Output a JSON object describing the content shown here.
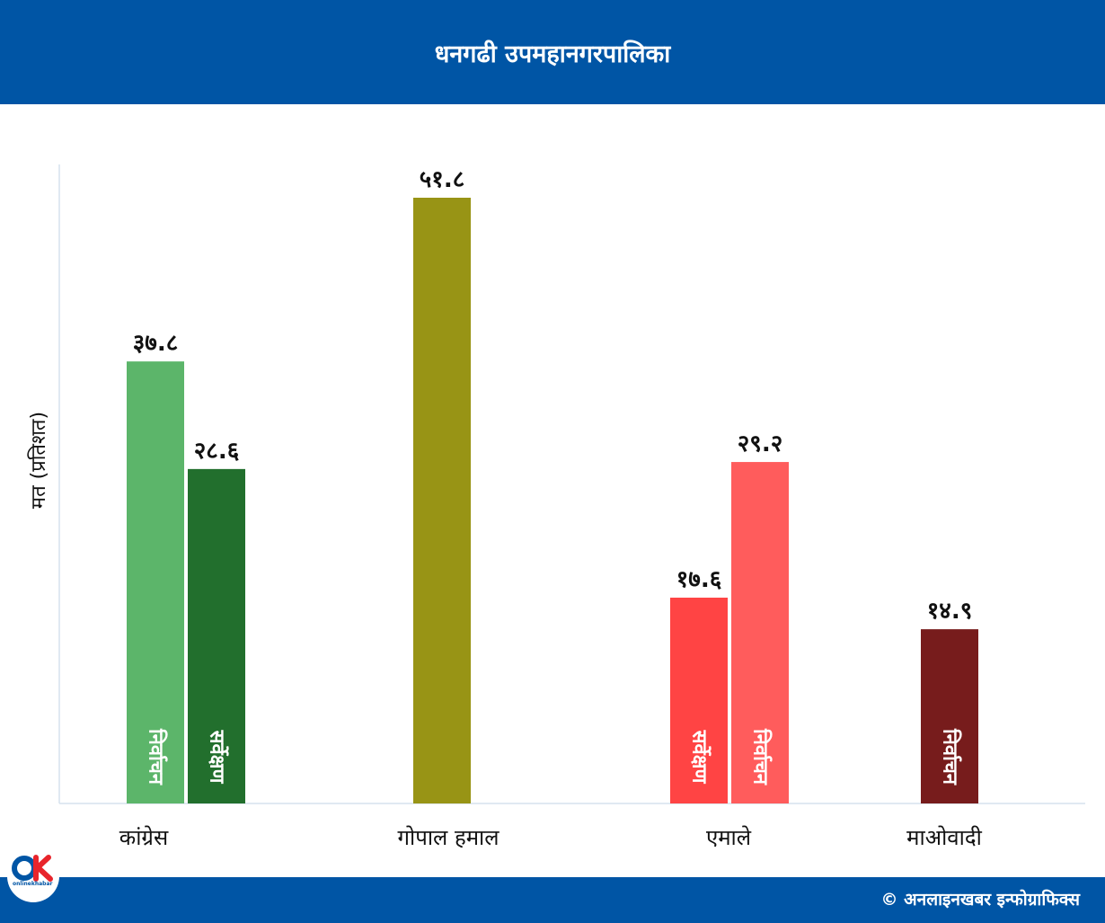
{
  "title": "धनगढी उपमहानगरपालिका",
  "footer": {
    "credit": "© अनलाइनखबर इन्फोग्राफिक्स",
    "logo_text": "onlinekhabar"
  },
  "colors": {
    "banner": "#0055a5",
    "congress_election": "#5cb56a",
    "congress_survey": "#226f2d",
    "gopal": "#989415",
    "uml_survey": "#ff4444",
    "uml_election": "#ff5c5c",
    "maoist": "#771c1c"
  },
  "chart_data": {
    "type": "bar",
    "title": "धनगढी उपमहानगरपालिका",
    "ylabel": "मत (प्रतिशत)",
    "xlabel": "",
    "ylim": [
      0,
      55
    ],
    "grid": false,
    "categories": [
      "कांग्रेस",
      "गोपाल हमाल",
      "एमाले",
      "माओवादी"
    ],
    "bars": [
      {
        "category": "कांग्रेस",
        "label": "निर्वाचन",
        "value": 37.8,
        "value_label": "३७.८",
        "color": "#5cb56a"
      },
      {
        "category": "कांग्रेस",
        "label": "सर्वेक्षण",
        "value": 28.6,
        "value_label": "२८.६",
        "color": "#226f2d"
      },
      {
        "category": "गोपाल हमाल",
        "label": "",
        "value": 51.8,
        "value_label": "५१.८",
        "color": "#989415"
      },
      {
        "category": "एमाले",
        "label": "सर्वेक्षण",
        "value": 17.6,
        "value_label": "१७.६",
        "color": "#ff4444"
      },
      {
        "category": "एमाले",
        "label": "निर्वाचन",
        "value": 29.2,
        "value_label": "२९.२",
        "color": "#ff5c5c"
      },
      {
        "category": "माओवादी",
        "label": "निर्वाचन",
        "value": 14.9,
        "value_label": "१४.९",
        "color": "#771c1c"
      }
    ]
  }
}
